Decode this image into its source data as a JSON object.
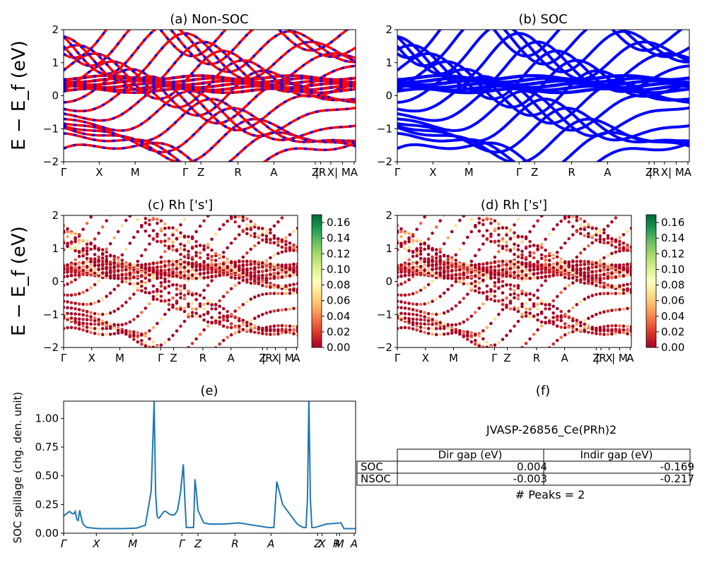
{
  "figure": {
    "id_label": "JVASP-26856_Ce(PRh)2",
    "peaks_text": "# Peaks = 2",
    "table": {
      "columns": [
        "",
        "Dir gap (eV)",
        "Indir gap (eV)"
      ],
      "rows": [
        [
          "SOC",
          "0.004",
          "-0.169"
        ],
        [
          "NSOC",
          "-0.003",
          "-0.217"
        ]
      ]
    }
  },
  "chart_data": [
    {
      "panel": "a",
      "type": "line",
      "title": "(a) Non-SOC",
      "ylabel": "E − E_f (eV)",
      "ylim": [
        -2,
        2
      ],
      "yticks": [
        "2",
        "1",
        "0",
        "−1",
        "−2"
      ],
      "kpath_ticks": [
        "Γ",
        "X",
        "M",
        "Γ",
        "Z",
        "R",
        "A",
        "Z",
        "|R",
        "X",
        "| M",
        "A"
      ],
      "series": [
        {
          "style": "red line with blue dashes",
          "color": "#ff0000",
          "dash_color": "#0000ff"
        }
      ]
    },
    {
      "panel": "b",
      "type": "line",
      "title": "(b) SOC",
      "ylim": [
        -2,
        2
      ],
      "yticks": [
        "2",
        "1",
        "0",
        "−1",
        "−2"
      ],
      "kpath_ticks": [
        "Γ",
        "X",
        "M",
        "Γ",
        "Z",
        "R",
        "A",
        "Z",
        "|R",
        "X",
        "| M",
        "A"
      ],
      "series": [
        {
          "style": "blue line",
          "color": "#0000ff"
        }
      ]
    },
    {
      "panel": "c",
      "type": "scatter",
      "title": "(c)  Rh ['s']",
      "ylabel": "E − E_f (eV)",
      "ylim": [
        -2,
        2
      ],
      "yticks": [
        "2",
        "1",
        "0",
        "−1",
        "−2"
      ],
      "kpath_ticks": [
        "Γ",
        "X",
        "M",
        "Γ",
        "Z",
        "R",
        "A",
        "Z",
        "|R",
        "X",
        "| M",
        "A"
      ],
      "colorbar": {
        "cmap": "RdYlGn",
        "min": 0.0,
        "max": 0.17,
        "ticks": [
          "0.16",
          "0.14",
          "0.12",
          "0.10",
          "0.08",
          "0.06",
          "0.04",
          "0.02",
          "0.00"
        ]
      }
    },
    {
      "panel": "d",
      "type": "scatter",
      "title": "(d) Rh ['s']",
      "ylim": [
        -2,
        2
      ],
      "yticks": [
        "2",
        "1",
        "0",
        "−1",
        "−2"
      ],
      "kpath_ticks": [
        "Γ",
        "X",
        "M",
        "Γ",
        "Z",
        "R",
        "A",
        "Z",
        "|R",
        "X",
        "| M",
        "A"
      ],
      "colorbar": {
        "cmap": "RdYlGn",
        "min": 0.0,
        "max": 0.17,
        "ticks": [
          "0.16",
          "0.14",
          "0.12",
          "0.10",
          "0.08",
          "0.06",
          "0.04",
          "0.02",
          "0.00"
        ]
      }
    },
    {
      "panel": "e",
      "type": "line",
      "title": "(e)",
      "ylabel": "SOC spillage (chg. den. unit)",
      "ylim": [
        0,
        1.15
      ],
      "yticks": [
        "1.00",
        "0.75",
        "0.50",
        "0.25",
        "0.00"
      ],
      "kpath_ticks": [
        "Γ",
        "X",
        "M",
        "Γ",
        "Z",
        "R",
        "A",
        "Z",
        "X",
        "R",
        "M",
        "A"
      ],
      "series": [
        {
          "color": "#1f77b4",
          "x": [
            0,
            0.01,
            0.02,
            0.03,
            0.035,
            0.04,
            0.045,
            0.05,
            0.055,
            0.06,
            0.065,
            0.07,
            0.08,
            0.1,
            0.12,
            0.15,
            0.2,
            0.25,
            0.28,
            0.3,
            0.31,
            0.315,
            0.32,
            0.325,
            0.33,
            0.335,
            0.34,
            0.345,
            0.35,
            0.36,
            0.37,
            0.375,
            0.38,
            0.39,
            0.4,
            0.41,
            0.415,
            0.42,
            0.44,
            0.445,
            0.45,
            0.455,
            0.46,
            0.48,
            0.5,
            0.55,
            0.6,
            0.65,
            0.7,
            0.71,
            0.72,
            0.73,
            0.75,
            0.8,
            0.82,
            0.83,
            0.835,
            0.84,
            0.845,
            0.85,
            0.86,
            0.9,
            0.95,
            0.96,
            1.0
          ],
          "y": [
            0.15,
            0.17,
            0.19,
            0.17,
            0.17,
            0.19,
            0.12,
            0.11,
            0.2,
            0.14,
            0.09,
            0.07,
            0.05,
            0.045,
            0.04,
            0.04,
            0.04,
            0.045,
            0.07,
            0.37,
            1.15,
            0.35,
            0.15,
            0.13,
            0.14,
            0.16,
            0.18,
            0.19,
            0.19,
            0.17,
            0.16,
            0.16,
            0.16,
            0.2,
            0.35,
            0.6,
            0.3,
            0.05,
            0.05,
            0.05,
            0.47,
            0.35,
            0.2,
            0.09,
            0.08,
            0.08,
            0.09,
            0.07,
            0.05,
            0.05,
            0.05,
            0.45,
            0.25,
            0.08,
            0.05,
            0.05,
            0.3,
            1.18,
            0.3,
            0.05,
            0.05,
            0.08,
            0.09,
            0.04,
            0.04
          ]
        }
      ]
    }
  ]
}
